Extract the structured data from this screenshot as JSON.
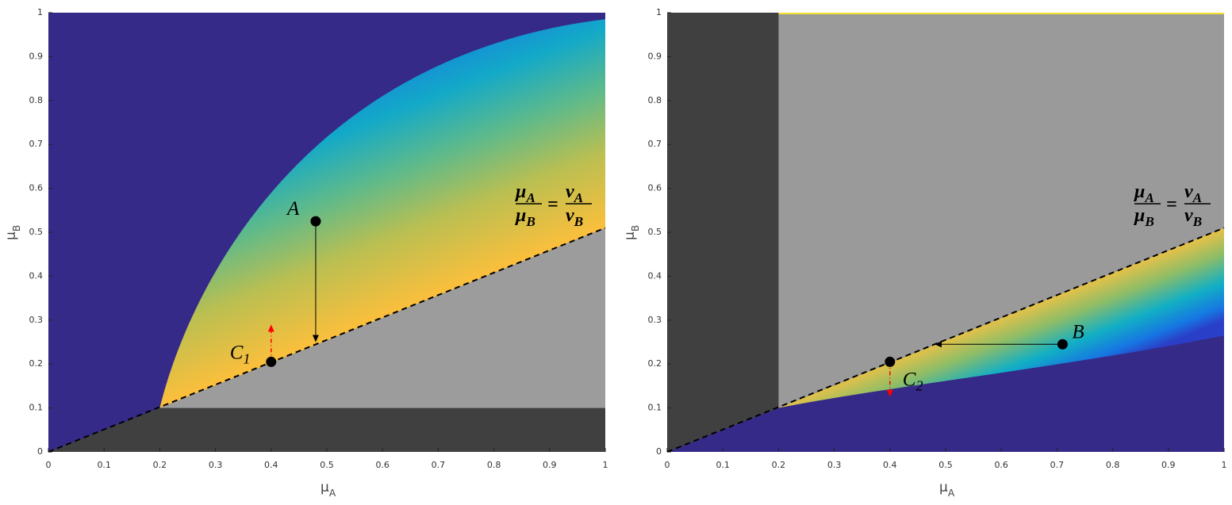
{
  "chart_data": [
    {
      "type": "heatmap",
      "region": "above_line",
      "x_label": {
        "symbol": "μ",
        "sub": "A"
      },
      "y_label": {
        "symbol": "μ",
        "sub": "B"
      },
      "xlim": [
        0,
        1
      ],
      "ylim": [
        0,
        1
      ],
      "xticks": [
        0,
        0.1,
        0.2,
        0.3,
        0.4,
        0.5,
        0.6,
        0.7,
        0.8,
        0.9,
        1
      ],
      "yticks": [
        0,
        0.1,
        0.2,
        0.3,
        0.4,
        0.5,
        0.6,
        0.7,
        0.8,
        0.9,
        1
      ],
      "reference_line": {
        "x": [
          0,
          1
        ],
        "y": [
          0,
          0.51
        ],
        "color": "#000000",
        "style": "dashed"
      },
      "formula": {
        "lhs": {
          "numerator": {
            "symbol": "μ",
            "sub": "A"
          },
          "denominator": {
            "symbol": "μ",
            "sub": "B"
          }
        },
        "equals": "=",
        "rhs": {
          "numerator": {
            "symbol": "ν",
            "sub": "A"
          },
          "denominator": {
            "symbol": "ν",
            "sub": "B"
          }
        }
      },
      "points": [
        {
          "label": {
            "text": "A"
          },
          "label_position": "upper left",
          "x": 0.48,
          "y": 0.525,
          "color": "#000000"
        },
        {
          "label": {
            "text": "C",
            "sub": "1"
          },
          "label_position": "left",
          "x": 0.4,
          "y": 0.205,
          "color": "#000000"
        }
      ],
      "arrows": [
        {
          "x": [
            0.48,
            0.48
          ],
          "y": [
            0.525,
            0.25
          ],
          "color": "#000000",
          "style": "solid"
        },
        {
          "x": [
            0.4,
            0.4
          ],
          "y": [
            0.205,
            0.29
          ],
          "color": "#ff0000",
          "style": "dashdot"
        }
      ]
    },
    {
      "type": "heatmap",
      "region": "below_line",
      "x_label": {
        "symbol": "μ",
        "sub": "A"
      },
      "y_label": {
        "symbol": "μ",
        "sub": "B"
      },
      "xlim": [
        0,
        1
      ],
      "ylim": [
        0,
        1
      ],
      "xticks": [
        0,
        0.1,
        0.2,
        0.3,
        0.4,
        0.5,
        0.6,
        0.7,
        0.8,
        0.9,
        1
      ],
      "yticks": [
        0,
        0.1,
        0.2,
        0.3,
        0.4,
        0.5,
        0.6,
        0.7,
        0.8,
        0.9,
        1
      ],
      "reference_line": {
        "x": [
          0,
          1
        ],
        "y": [
          0,
          0.51
        ],
        "color": "#000000",
        "style": "dashed"
      },
      "formula": {
        "lhs": {
          "numerator": {
            "symbol": "μ",
            "sub": "A"
          },
          "denominator": {
            "symbol": "μ",
            "sub": "B"
          }
        },
        "equals": "=",
        "rhs": {
          "numerator": {
            "symbol": "ν",
            "sub": "A"
          },
          "denominator": {
            "symbol": "ν",
            "sub": "B"
          }
        }
      },
      "points": [
        {
          "label": {
            "text": "B"
          },
          "label_position": "upper right",
          "x": 0.71,
          "y": 0.245,
          "color": "#000000"
        },
        {
          "label": {
            "text": "C",
            "sub": "2"
          },
          "label_position": "lower right",
          "x": 0.4,
          "y": 0.205,
          "color": "#000000"
        }
      ],
      "arrows": [
        {
          "x": [
            0.71,
            0.48
          ],
          "y": [
            0.245,
            0.245
          ],
          "color": "#000000",
          "style": "solid"
        },
        {
          "x": [
            0.4,
            0.4
          ],
          "y": [
            0.205,
            0.125
          ],
          "color": "#ff0000",
          "style": "dashdot"
        }
      ]
    }
  ]
}
